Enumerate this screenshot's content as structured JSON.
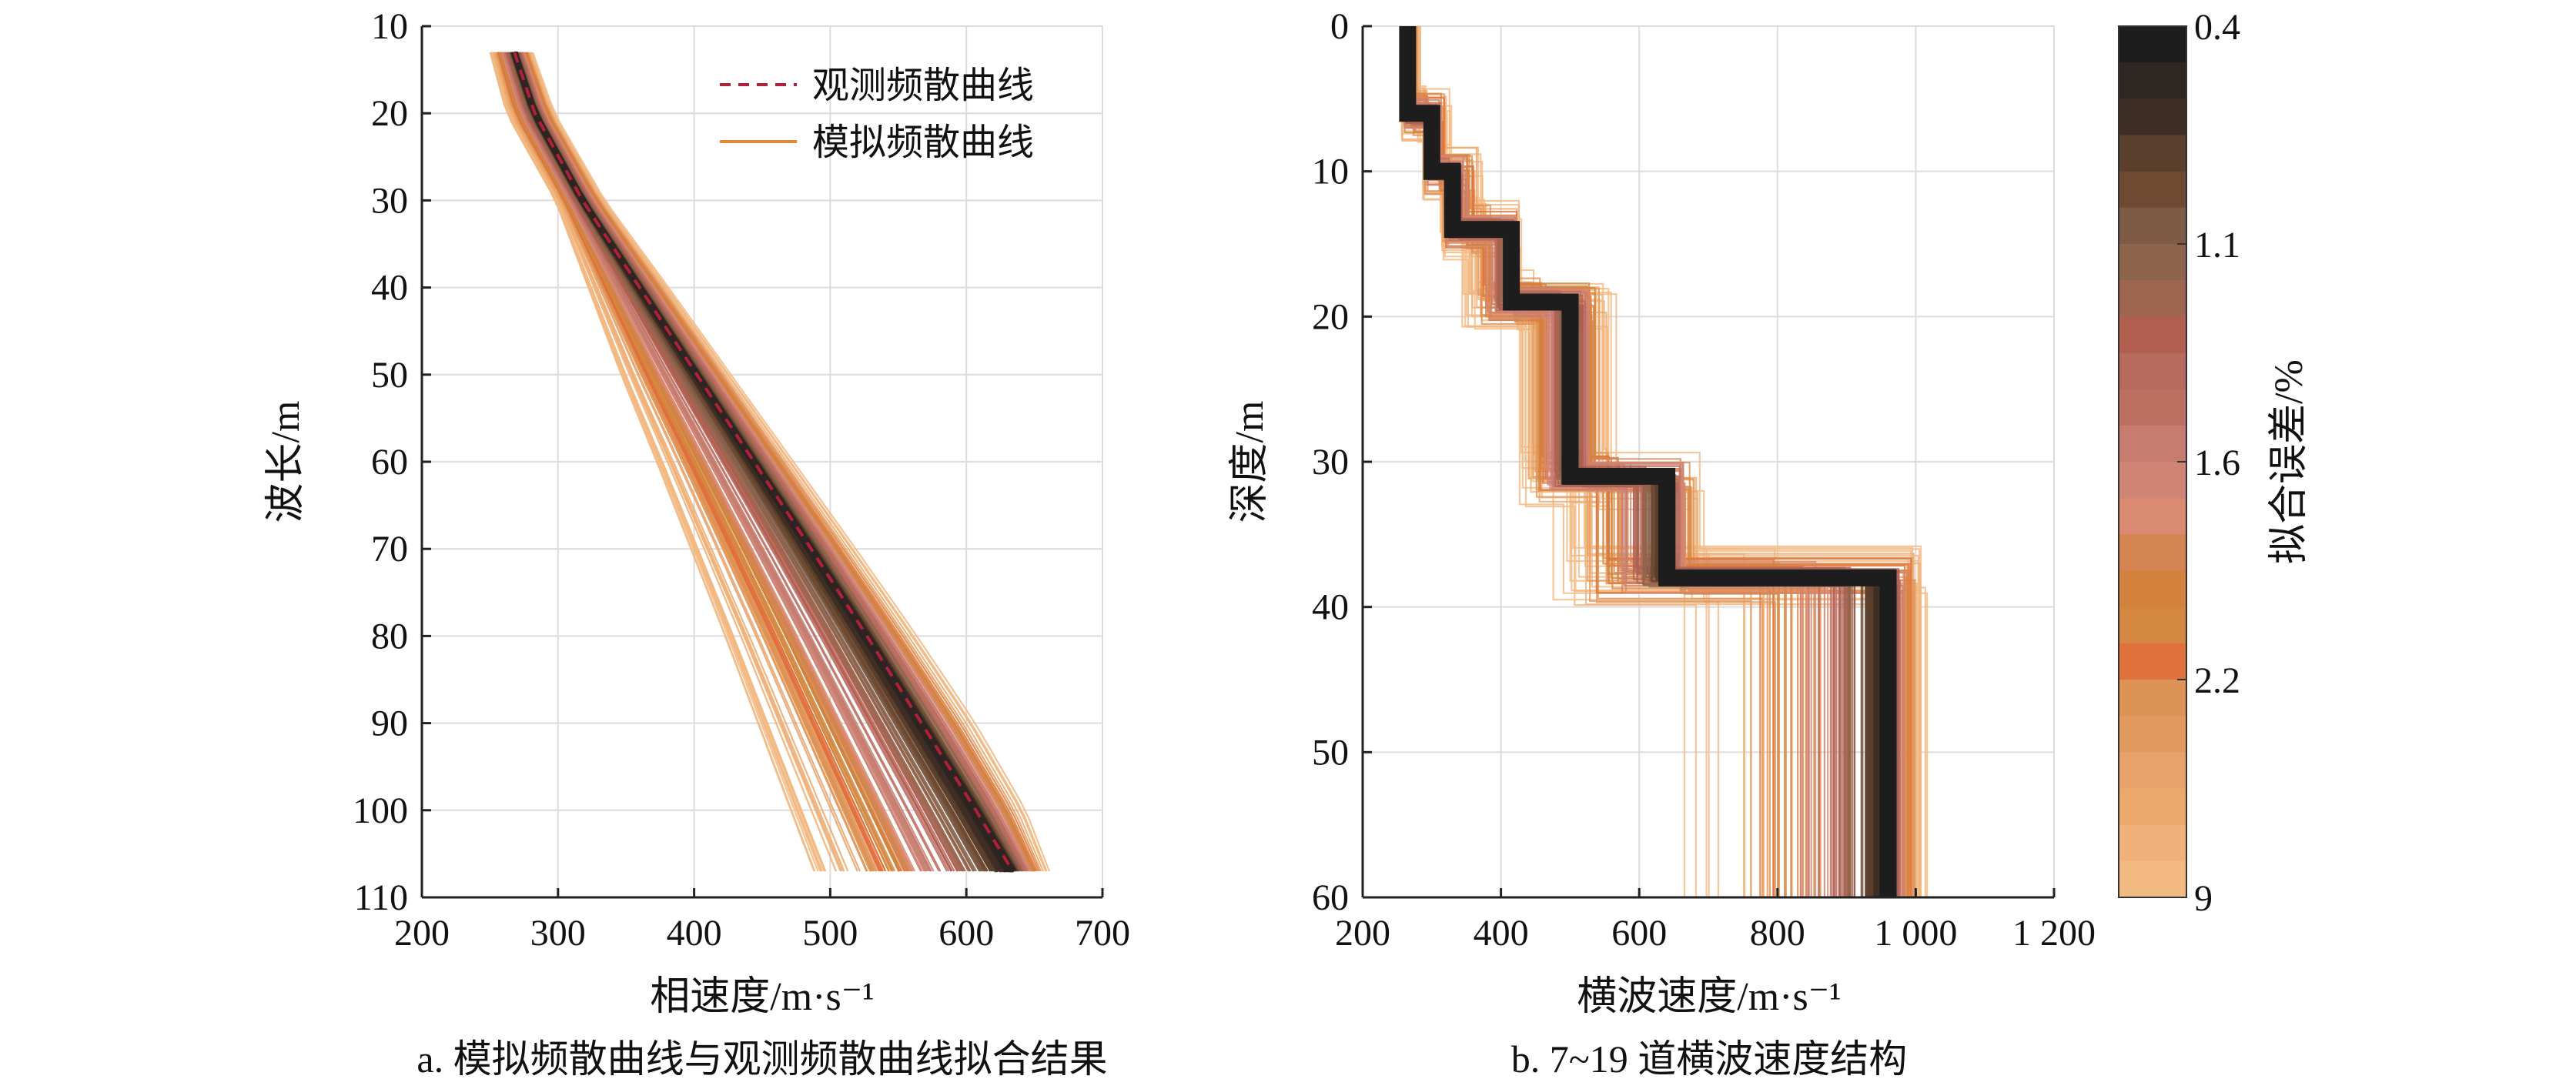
{
  "chart_data": [
    {
      "id": "a",
      "type": "line",
      "caption": "a. 模拟频散曲线与观测频散曲线拟合结果",
      "xlabel": "相速度/m·s⁻¹",
      "ylabel": "波长/m",
      "xlim": [
        200,
        700
      ],
      "ylim": [
        10,
        110
      ],
      "y_inverted": true,
      "x_ticks": [
        200,
        300,
        400,
        500,
        600,
        700
      ],
      "y_ticks": [
        10,
        20,
        30,
        40,
        50,
        60,
        70,
        80,
        90,
        100,
        110
      ],
      "x_tick_labels": [
        "200",
        "300",
        "400",
        "500",
        "600",
        "700"
      ],
      "y_tick_labels": [
        "10",
        "20",
        "30",
        "40",
        "50",
        "60",
        "70",
        "80",
        "90",
        "100",
        "110"
      ],
      "grid": true,
      "legend_position": "top-right",
      "legend": [
        {
          "label": "观测频散曲线",
          "style": "dashed",
          "color": "#b0203a"
        },
        {
          "label": "模拟频散曲线",
          "style": "solid",
          "color": "#e08a3a"
        }
      ],
      "observed": {
        "wavelength": [
          13,
          20,
          30,
          40,
          50,
          60,
          70,
          80,
          90,
          100,
          107
        ],
        "velocity": [
          268,
          283,
          318,
          360,
          402,
          444,
          486,
          527,
          567,
          607,
          634
        ]
      },
      "simulated_spread": {
        "wavelength": [
          13,
          20,
          30,
          40,
          50,
          60,
          70,
          80,
          90,
          100,
          107
        ],
        "velocity_min": [
          250,
          262,
          298,
          322,
          346,
          372,
          397,
          422,
          446,
          470,
          487
        ],
        "velocity_max": [
          282,
          298,
          335,
          382,
          428,
          474,
          520,
          565,
          608,
          645,
          662
        ]
      }
    },
    {
      "id": "b",
      "type": "line",
      "caption": "b. 7~19 道横波速度结构",
      "xlabel": "横波速度/m·s⁻¹",
      "ylabel": "深度/m",
      "xlim": [
        200,
        1200
      ],
      "ylim": [
        0,
        60
      ],
      "y_inverted": true,
      "x_ticks": [
        200,
        400,
        600,
        800,
        1000,
        1200
      ],
      "y_ticks": [
        0,
        10,
        20,
        30,
        40,
        50,
        60
      ],
      "x_tick_labels": [
        "200",
        "400",
        "600",
        "800",
        "1 000",
        "1 200"
      ],
      "y_tick_labels": [
        "0",
        "10",
        "20",
        "30",
        "40",
        "50",
        "60"
      ],
      "grid": true,
      "best_model": {
        "depth_top": [
          0,
          6,
          10,
          14,
          19,
          31,
          38
        ],
        "depth_bottom": [
          6,
          10,
          14,
          19,
          31,
          38,
          60
        ],
        "velocity": [
          265,
          300,
          330,
          415,
          500,
          640,
          960
        ]
      },
      "ensemble_range": {
        "velocity_min": [
          255,
          285,
          310,
          340,
          420,
          470,
          660
        ],
        "velocity_max": [
          285,
          330,
          380,
          430,
          570,
          700,
          1020
        ]
      }
    }
  ],
  "colorbar": {
    "label": "拟合误差/%",
    "ticks": [
      {
        "value": 0.4,
        "label": "0.4"
      },
      {
        "value": 1.1,
        "label": "1.1"
      },
      {
        "value": 1.6,
        "label": "1.6"
      },
      {
        "value": 2.2,
        "label": "2.2"
      },
      {
        "value": 9,
        "label": "9"
      }
    ],
    "colors": [
      "#1e1d1d",
      "#2e2622",
      "#3f2e26",
      "#5a3f2c",
      "#6e4a33",
      "#7d5b46",
      "#8e634b",
      "#9e6650",
      "#b15e50",
      "#b96a5e",
      "#bd6f62",
      "#c67c70",
      "#cf8475",
      "#d98a70",
      "#d48450",
      "#d2823c",
      "#d48740",
      "#e0703c",
      "#de9356",
      "#e39a5e",
      "#e8a26a",
      "#eca96c",
      "#f0b27a",
      "#f2b982"
    ]
  }
}
